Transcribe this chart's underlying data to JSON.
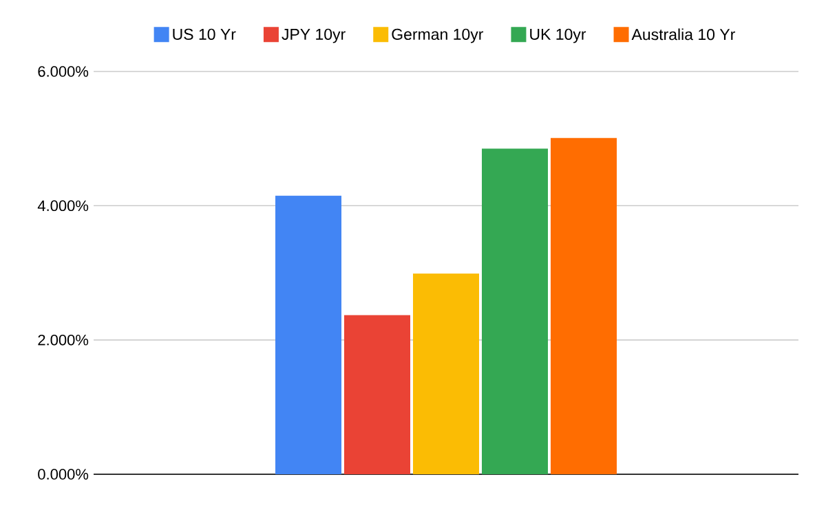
{
  "chart_data": {
    "type": "bar",
    "categories": [
      null
    ],
    "series": [
      {
        "name": "US 10 Yr",
        "color": "#4285f4",
        "values": [
          4.15
        ]
      },
      {
        "name": "JPY 10yr",
        "color": "#ea4335",
        "values": [
          2.37
        ]
      },
      {
        "name": "German 10yr",
        "color": "#fbbc04",
        "values": [
          2.99
        ]
      },
      {
        "name": "UK 10yr",
        "color": "#34a853",
        "values": [
          4.85
        ]
      },
      {
        "name": "Australia 10 Yr",
        "color": "#ff6d01",
        "values": [
          5.01
        ]
      }
    ],
    "ylim": [
      0,
      6
    ],
    "yticks": [
      {
        "value": 0,
        "label": "0.000%"
      },
      {
        "value": 2,
        "label": "2.000%"
      },
      {
        "value": 4,
        "label": "4.000%"
      },
      {
        "value": 6,
        "label": "6.000%"
      }
    ],
    "grid": "y",
    "legend": "top"
  }
}
